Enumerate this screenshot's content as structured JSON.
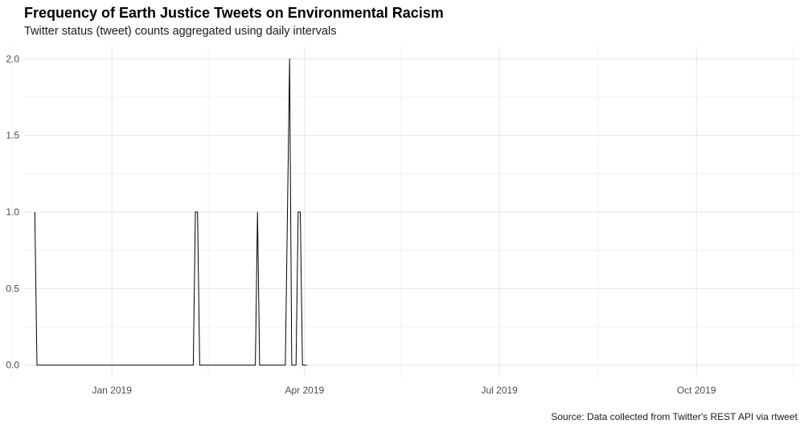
{
  "chart_data": {
    "type": "line",
    "title": "Frequency of Earth Justice Tweets on Environmental Racism",
    "subtitle": "Twitter status (tweet) counts aggregated using daily intervals",
    "caption": "Source: Data collected from Twitter's REST API via rtweet",
    "xlabel": "",
    "ylabel": "",
    "x_range": [
      "2018-11-21",
      "2019-11-18"
    ],
    "ylim": [
      -0.08,
      2.08
    ],
    "y_ticks": [
      0.0,
      0.5,
      1.0,
      1.5,
      2.0
    ],
    "y_tick_labels": [
      "0.0",
      "0.5",
      "1.0",
      "1.5",
      "2.0"
    ],
    "x_ticks": [
      "2019-01-01",
      "2019-04-01",
      "2019-07-01",
      "2019-10-01"
    ],
    "x_tick_labels": [
      "Jan 2019",
      "Apr 2019",
      "Jul 2019",
      "Oct 2019"
    ],
    "x_minor_ticks": [
      "2018-11-15",
      "2019-02-15",
      "2019-05-16",
      "2019-08-16",
      "2019-11-15"
    ],
    "grid": true,
    "line_color": "#000000",
    "series": [
      {
        "points": [
          [
            "2018-11-26",
            1
          ],
          [
            "2018-11-27",
            0
          ],
          [
            "2019-02-08",
            0
          ],
          [
            "2019-02-09",
            1
          ],
          [
            "2019-02-10",
            1
          ],
          [
            "2019-02-11",
            0
          ],
          [
            "2019-03-09",
            0
          ],
          [
            "2019-03-10",
            1
          ],
          [
            "2019-03-11",
            0
          ],
          [
            "2019-03-14",
            0
          ],
          [
            "2019-03-15",
            0
          ],
          [
            "2019-03-23",
            0
          ],
          [
            "2019-03-24",
            1
          ],
          [
            "2019-03-25",
            2
          ],
          [
            "2019-03-26",
            0
          ],
          [
            "2019-03-28",
            0
          ],
          [
            "2019-03-29",
            1
          ],
          [
            "2019-03-30",
            1
          ],
          [
            "2019-03-31",
            0
          ],
          [
            "2019-04-01",
            0
          ],
          [
            "2019-04-02",
            0
          ],
          [
            "2019-03-26",
            0
          ],
          [
            "2019-03-27",
            0
          ]
        ]
      }
    ]
  }
}
